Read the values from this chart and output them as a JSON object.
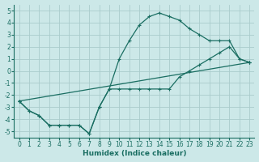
{
  "xlabel": "Humidex (Indice chaleur)",
  "xlim": [
    -0.5,
    23.5
  ],
  "ylim": [
    -5.5,
    5.5
  ],
  "xticks": [
    0,
    1,
    2,
    3,
    4,
    5,
    6,
    7,
    8,
    9,
    10,
    11,
    12,
    13,
    14,
    15,
    16,
    17,
    18,
    19,
    20,
    21,
    22,
    23
  ],
  "yticks": [
    -5,
    -4,
    -3,
    -2,
    -1,
    0,
    1,
    2,
    3,
    4,
    5
  ],
  "bg_color": "#cce8e8",
  "line_color": "#1a6e62",
  "grid_color": "#aacccc",
  "line1_x": [
    0,
    1,
    2,
    3,
    4,
    5,
    6,
    7,
    8,
    9,
    10,
    11,
    12,
    13,
    14,
    15,
    16,
    17,
    18,
    19,
    20,
    21,
    22,
    23
  ],
  "line1_y": [
    -2.5,
    -3.3,
    -3.7,
    -4.5,
    -4.5,
    -4.5,
    -4.5,
    -5.2,
    -3.0,
    -1.5,
    1.0,
    2.5,
    3.8,
    4.5,
    4.8,
    4.5,
    4.2,
    3.5,
    3.0,
    2.5,
    2.5,
    2.5,
    1.0,
    0.7
  ],
  "line2_x": [
    0,
    1,
    2,
    3,
    4,
    5,
    6,
    7,
    8,
    9,
    10,
    11,
    12,
    13,
    14,
    15,
    16,
    17,
    18,
    19,
    20,
    21,
    22,
    23
  ],
  "line2_y": [
    -2.5,
    -3.3,
    -3.7,
    -4.5,
    -4.5,
    -4.5,
    -4.5,
    -5.2,
    -3.0,
    -1.5,
    -1.5,
    -1.5,
    -1.5,
    -1.5,
    -1.5,
    -1.5,
    -0.5,
    0.0,
    0.5,
    1.0,
    1.5,
    2.0,
    1.0,
    0.7
  ],
  "line3_x": [
    0,
    23
  ],
  "line3_y": [
    -2.5,
    0.7
  ]
}
